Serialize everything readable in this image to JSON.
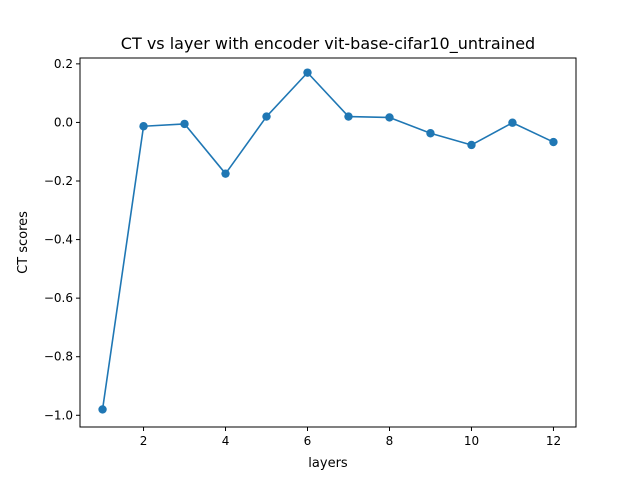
{
  "chart_data": {
    "type": "line",
    "title": "CT vs layer with encoder vit-base-cifar10_untrained",
    "xlabel": "layers",
    "ylabel": "CT scores",
    "xlim": [
      0.45,
      12.55
    ],
    "ylim": [
      -1.04,
      0.22
    ],
    "xticks": [
      2,
      4,
      6,
      8,
      10,
      12
    ],
    "yticks": [
      -1.0,
      -0.8,
      -0.6,
      -0.4,
      -0.2,
      0.0,
      0.2
    ],
    "grid": false,
    "series": [
      {
        "color": "#1f77b4",
        "marker": "circle",
        "x": [
          1,
          2,
          3,
          4,
          5,
          6,
          7,
          8,
          9,
          10,
          11,
          12
        ],
        "y": [
          -0.98,
          -0.013,
          -0.005,
          -0.175,
          0.02,
          0.17,
          0.02,
          0.017,
          -0.037,
          -0.077,
          -0.001,
          -0.067
        ]
      }
    ]
  }
}
